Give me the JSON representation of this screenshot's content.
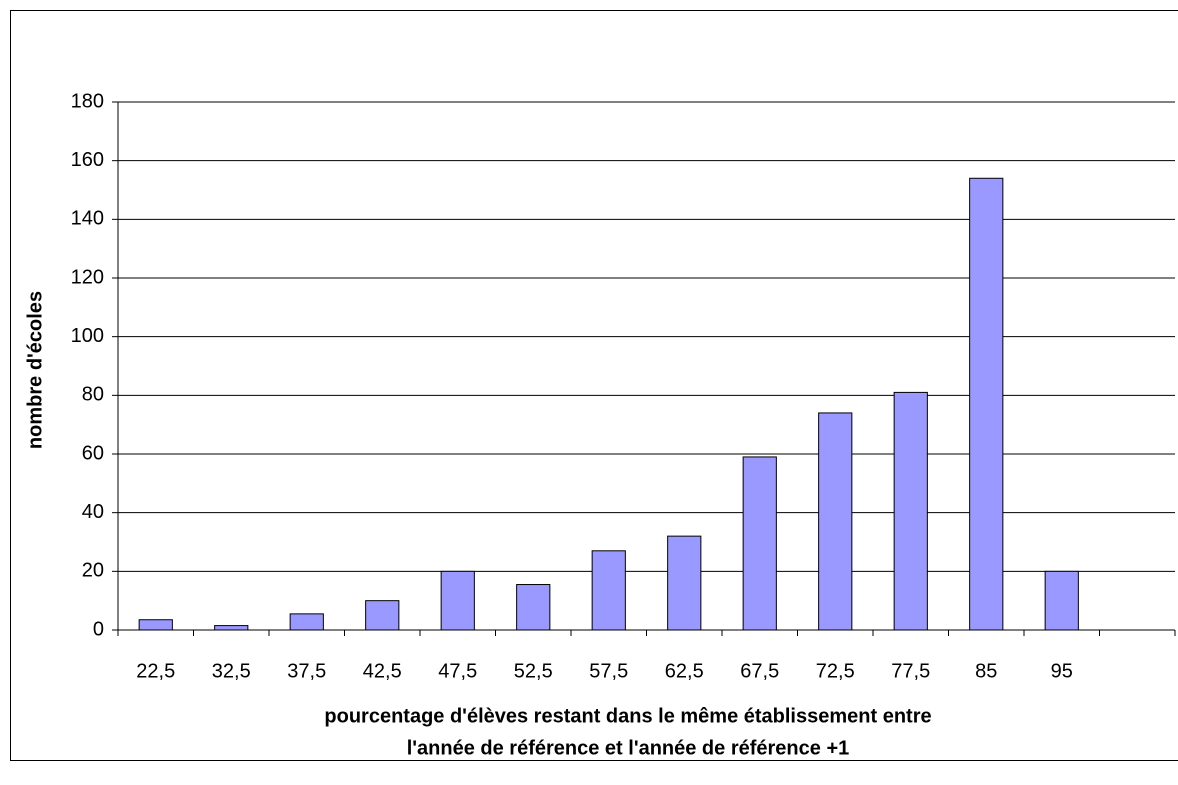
{
  "chart_data": {
    "type": "bar",
    "xlabel": [
      "pourcentage d'élèves restant dans le même établissement entre",
      "l'année de référence et l'année de référence +1"
    ],
    "ylabel": "nombre d'écoles",
    "categories": [
      "22,5",
      "32,5",
      "37,5",
      "42,5",
      "47,5",
      "52,5",
      "57,5",
      "62,5",
      "67,5",
      "72,5",
      "77,5",
      "85",
      "95",
      null
    ],
    "values": [
      3.5,
      1.5,
      5.5,
      10,
      20,
      15.5,
      27,
      32,
      59,
      74,
      81,
      154,
      20,
      null
    ],
    "color": "#9999ff",
    "ylim": [
      0,
      180
    ],
    "yticks": [
      0,
      20,
      40,
      60,
      80,
      100,
      120,
      140,
      160,
      180
    ],
    "grid": true
  }
}
